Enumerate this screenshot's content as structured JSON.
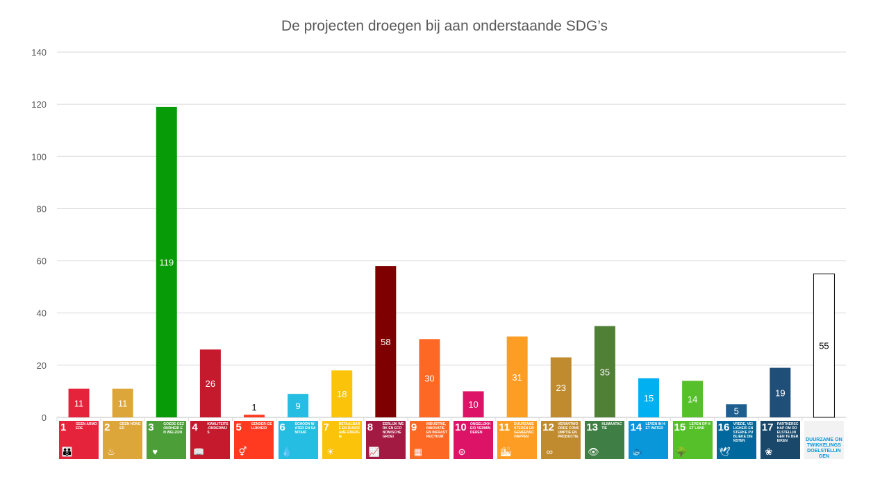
{
  "chart_data": {
    "type": "bar",
    "title": "De projecten droegen bij aan onderstaande SDG’s",
    "ylim": [
      0,
      140
    ],
    "yticks": [
      0,
      20,
      40,
      60,
      80,
      100,
      120,
      140
    ],
    "grid": true,
    "categories": [
      "1 Geen armoede",
      "2 Geen honger",
      "3 Goede gezondheid en welzijn",
      "4 Kwaliteitsonderwijs",
      "5 Gendergelijkheid",
      "6 Schoon water en sanitair",
      "7 Betaalbare en duurzame energie",
      "8 Eerlijk werk en economische groei",
      "9 Industrie, innovatie en infrastructuur",
      "10 Ongelijkheid verminderen",
      "11 Duurzame steden en gemeenschappen",
      "12 Verantwoorde consumptie en productie",
      "13 Klimaatactie",
      "14 Leven in het water",
      "15 Leven op het land",
      "16 Vrede, veiligheid en sterke publieke diensten",
      "17 Partnerschap om doelstellingen te bereiken",
      "Duurzame ontwikkelingsdoelstellingen"
    ],
    "values": [
      11,
      11,
      119,
      26,
      1,
      9,
      18,
      58,
      30,
      10,
      31,
      23,
      35,
      15,
      14,
      5,
      19,
      55
    ],
    "colors": [
      "#e5243b",
      "#dda63a",
      "#079b07",
      "#c5192d",
      "#ff3a21",
      "#26bde2",
      "#fcc30b",
      "#7f0000",
      "#fd6925",
      "#dd1367",
      "#fd9d24",
      "#bf8b2e",
      "#507f36",
      "#00b0f0",
      "#56c02b",
      "#1f5f8f",
      "#1f4e79",
      "#ffffff"
    ]
  },
  "icons": [
    {
      "num": "1",
      "text": "Geen armoede",
      "color": "#e5243b",
      "glyph": "people-icon"
    },
    {
      "num": "2",
      "text": "Geen honger",
      "color": "#dda63a",
      "glyph": "bowl-icon"
    },
    {
      "num": "3",
      "text": "Goede gezondheid en welzijn",
      "color": "#4c9f38",
      "glyph": "heartbeat-icon"
    },
    {
      "num": "4",
      "text": "Kwaliteits-onderwijs",
      "color": "#c5192d",
      "glyph": "book-icon"
    },
    {
      "num": "5",
      "text": "Gender-gelijkheid",
      "color": "#ff3a21",
      "glyph": "gender-icon"
    },
    {
      "num": "6",
      "text": "Schoon water en sanitair",
      "color": "#26bde2",
      "glyph": "water-icon"
    },
    {
      "num": "7",
      "text": "Betaalbare en duurzame energie",
      "color": "#fcc30b",
      "glyph": "sun-icon"
    },
    {
      "num": "8",
      "text": "Eerlijk werk en economische groei",
      "color": "#a21942",
      "glyph": "growth-icon"
    },
    {
      "num": "9",
      "text": "Industrie, innovatie en infrastructuur",
      "color": "#fd6925",
      "glyph": "cubes-icon"
    },
    {
      "num": "10",
      "text": "Ongelijkheid verminderen",
      "color": "#dd1367",
      "glyph": "equal-icon"
    },
    {
      "num": "11",
      "text": "Duurzame steden en gemeenschappen",
      "color": "#fd9d24",
      "glyph": "city-icon"
    },
    {
      "num": "12",
      "text": "Verantwoorde consumptie en productie",
      "color": "#bf8b2e",
      "glyph": "infinity-icon"
    },
    {
      "num": "13",
      "text": "Klimaatactie",
      "color": "#3f7e44",
      "glyph": "eye-icon"
    },
    {
      "num": "14",
      "text": "Leven in het water",
      "color": "#0a97d9",
      "glyph": "fish-icon"
    },
    {
      "num": "15",
      "text": "Leven op het land",
      "color": "#56c02b",
      "glyph": "tree-icon"
    },
    {
      "num": "16",
      "text": "Vrede, veiligheid en sterke publieke diensten",
      "color": "#00689d",
      "glyph": "dove-icon"
    },
    {
      "num": "17",
      "text": "Partnerschap om doelstellingen te bereiken",
      "color": "#19486a",
      "glyph": "rings-icon"
    }
  ],
  "logo": {
    "text": "Duurzame ontwikkelings doelstellingen"
  }
}
